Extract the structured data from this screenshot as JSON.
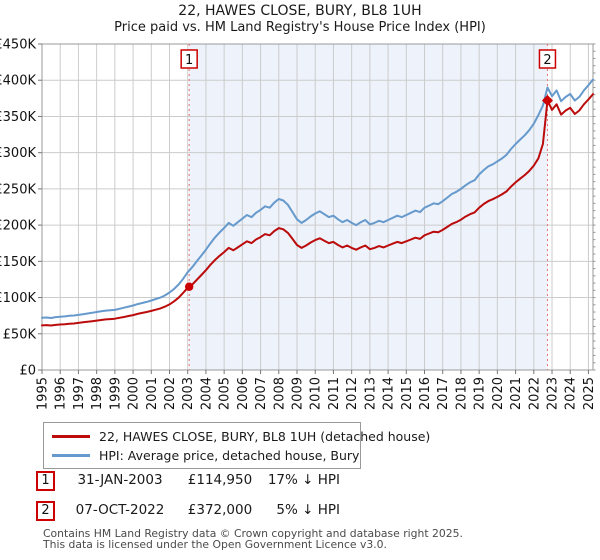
{
  "title": {
    "line1": "22, HAWES CLOSE, BURY, BL8 1UH",
    "line2": "Price paid vs. HM Land Registry's House Price Index (HPI)"
  },
  "legend": {
    "items": [
      {
        "label": "22, HAWES CLOSE, BURY, BL8 1UH (detached house)",
        "color": "#bb0b0b"
      },
      {
        "label": "HPI: Average price, detached house, Bury",
        "color": "#6699cc"
      }
    ]
  },
  "events": [
    {
      "num": "1",
      "date": "31-JAN-2003",
      "price": "£114,950",
      "hpi_diff": "17% ↓ HPI"
    },
    {
      "num": "2",
      "date": "07-OCT-2022",
      "price": "£372,000",
      "hpi_diff": "5% ↓ HPI"
    }
  ],
  "footer": {
    "line1": "Contains HM Land Registry data © Crown copyright and database right 2025.",
    "line2": "This data is licensed under the Open Government Licence v3.0."
  },
  "colors": {
    "price_line": "#bb0b0b",
    "hpi_line": "#6699cc",
    "marker": "#cc0000",
    "dashed_guide": "#e57373",
    "shade": "#edf2fb",
    "grid": "#cccccc",
    "axis_border": "#999999"
  },
  "chart_data": {
    "type": "line",
    "title": "22, HAWES CLOSE, BURY, BL8 1UH — Price paid vs. HPI",
    "x_axis": {
      "start_year": 1995,
      "end_year": 2025.25,
      "step": 0.25,
      "years": [
        1995,
        1996,
        1997,
        1998,
        1999,
        2000,
        2001,
        2002,
        2003,
        2004,
        2005,
        2006,
        2007,
        2008,
        2009,
        2010,
        2011,
        2012,
        2013,
        2014,
        2015,
        2016,
        2017,
        2018,
        2019,
        2020,
        2021,
        2022,
        2023,
        2024,
        2025
      ]
    },
    "y_axis": {
      "max_k": 450,
      "tick_step_k": 50,
      "tick_labels": [
        "£0",
        "£50K",
        "£100K",
        "£150K",
        "£200K",
        "£250K",
        "£300K",
        "£350K",
        "£400K",
        "£450K"
      ]
    },
    "unit": "GBP thousands",
    "series": [
      {
        "name": "22, HAWES CLOSE, BURY, BL8 1UH (detached house)",
        "color": "#bb0b0b",
        "values_k": [
          61.5,
          62,
          61.4,
          62.3,
          62.8,
          63.2,
          63.8,
          64.2,
          65,
          65.8,
          66.6,
          67.4,
          68.2,
          69,
          69.8,
          70.2,
          70.8,
          72,
          73.2,
          74.5,
          75.8,
          77.5,
          78.8,
          80,
          81.6,
          83.3,
          85,
          87.5,
          90.5,
          94.8,
          99.8,
          106.5,
          113.5,
          118,
          124.5,
          131.1,
          137.8,
          145.3,
          151.9,
          157.7,
          162.7,
          168.5,
          165.2,
          169.3,
          173.5,
          177.6,
          175.1,
          180.1,
          183.4,
          187.6,
          185.9,
          191.7,
          195.9,
          194.2,
          189.2,
          180.9,
          172.6,
          168.5,
          171.8,
          176,
          179.3,
          181.8,
          178.5,
          175.1,
          176.8,
          172.6,
          169.3,
          171.8,
          168.5,
          166,
          169.3,
          171.8,
          166.8,
          168.5,
          171,
          169.3,
          171.8,
          174.3,
          176.8,
          175.1,
          177.6,
          180.1,
          182.6,
          180.9,
          186,
          188.4,
          190.9,
          190.1,
          193.4,
          197.5,
          201.7,
          204.2,
          207.5,
          211.7,
          215,
          217.5,
          224.1,
          229.1,
          233.2,
          235.7,
          239,
          242.4,
          246.5,
          253.2,
          259,
          264,
          269,
          274.7,
          282.2,
          292.2,
          312,
          372,
          359.1,
          366.7,
          352.5,
          358.2,
          362,
          353.4,
          358.2,
          366.7,
          373.4,
          380.9
        ]
      },
      {
        "name": "HPI: Average price, detached house, Bury",
        "color": "#6699cc",
        "values_k": [
          72,
          72.5,
          71.8,
          73,
          73.5,
          74,
          74.8,
          75.2,
          76,
          77,
          78,
          79,
          80,
          81,
          82,
          82.5,
          83,
          84.5,
          86,
          87.5,
          89,
          91,
          92.5,
          94,
          96,
          98,
          100,
          103,
          107,
          112,
          118,
          126,
          135,
          142,
          150,
          158,
          166,
          175,
          183,
          190,
          196,
          203,
          199,
          204,
          209,
          214,
          211,
          217,
          221,
          226,
          224,
          231,
          236,
          234,
          228,
          218,
          208,
          203,
          207,
          212,
          216,
          219,
          215,
          211,
          213,
          208,
          204,
          207,
          203,
          200,
          204,
          207,
          201,
          203,
          206,
          204,
          207,
          210,
          213,
          211,
          214,
          217,
          220,
          218,
          224,
          227,
          230,
          229,
          233,
          238,
          243,
          246,
          250,
          255,
          259,
          262,
          270,
          276,
          281,
          284,
          288,
          292,
          297,
          305,
          312,
          318,
          324,
          331,
          340,
          352,
          365,
          390,
          378,
          386,
          371,
          377,
          381,
          372,
          377,
          386,
          393,
          401
        ]
      }
    ],
    "markers": [
      {
        "label": "1",
        "year": 2003.08,
        "value_k": 114.95,
        "shape": "circle"
      },
      {
        "label": "2",
        "year": 2022.75,
        "value_k": 372,
        "shape": "diamond"
      }
    ],
    "shaded_region": {
      "from_year": 2003.08,
      "to_year": 2022.75,
      "color": "#edf2fb"
    },
    "grid": true,
    "legend_position": "bottom"
  }
}
